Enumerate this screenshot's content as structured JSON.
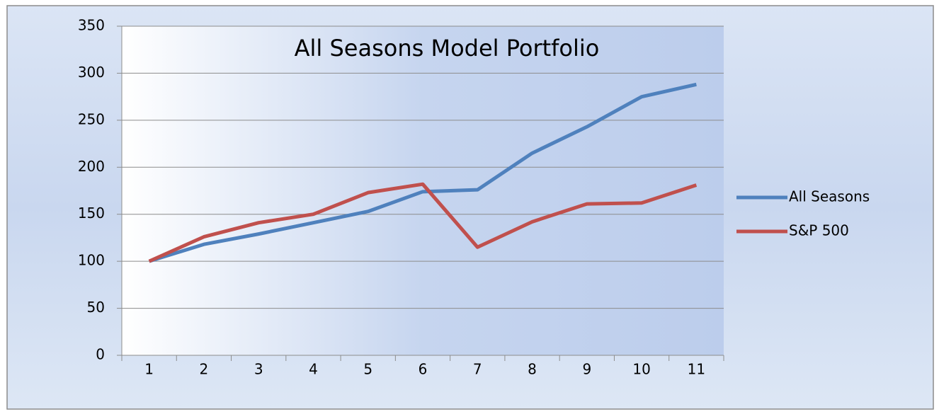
{
  "chart_data": {
    "type": "line",
    "title": "All Seasons Model Portfolio",
    "categories": [
      1,
      2,
      3,
      4,
      5,
      6,
      7,
      8,
      9,
      10,
      11
    ],
    "series": [
      {
        "name": "All Seasons",
        "color": "#4f81bd",
        "values": [
          100,
          118,
          129,
          141,
          153,
          174,
          176,
          215,
          243,
          275,
          288
        ]
      },
      {
        "name": "S&P 500",
        "color": "#c0504d",
        "values": [
          100,
          126,
          141,
          150,
          173,
          182,
          115,
          142,
          161,
          162,
          181
        ]
      }
    ],
    "ylim": [
      0,
      350
    ],
    "yticks": [
      0,
      50,
      100,
      150,
      200,
      250,
      300,
      350
    ],
    "grid": true,
    "legend": "right"
  }
}
